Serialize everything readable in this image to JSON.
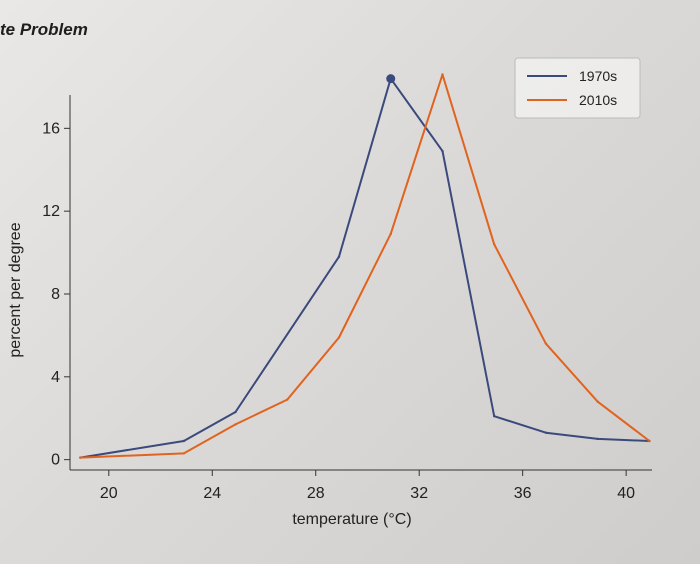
{
  "page": {
    "header": "te Problem"
  },
  "chart_data": {
    "type": "line",
    "xlabel": "temperature (°C)",
    "ylabel": "percent per degree",
    "xlim": [
      18.5,
      41
    ],
    "ylim": [
      -0.5,
      19.3
    ],
    "x_ticks": [
      20,
      24,
      28,
      32,
      36,
      40
    ],
    "y_ticks": [
      0,
      4,
      8,
      12,
      16
    ],
    "legend_position": "top-right",
    "series": [
      {
        "name": "1970s",
        "color": "#3a4a7c",
        "x": [
          18.9,
          22.9,
          24.9,
          28.9,
          30.9,
          32.9,
          34.9,
          36.9,
          38.9,
          40.9
        ],
        "y": [
          0.1,
          0.9,
          2.3,
          9.8,
          18.4,
          14.9,
          2.1,
          1.3,
          1.0,
          0.9
        ],
        "highlight_peak": true
      },
      {
        "name": "2010s",
        "color": "#e0631e",
        "x": [
          18.9,
          22.9,
          24.9,
          26.9,
          28.9,
          30.9,
          32.9,
          34.9,
          36.9,
          38.9,
          40.9
        ],
        "y": [
          0.1,
          0.3,
          1.7,
          2.9,
          5.9,
          10.9,
          18.6,
          10.4,
          5.6,
          2.8,
          0.9
        ]
      }
    ]
  }
}
